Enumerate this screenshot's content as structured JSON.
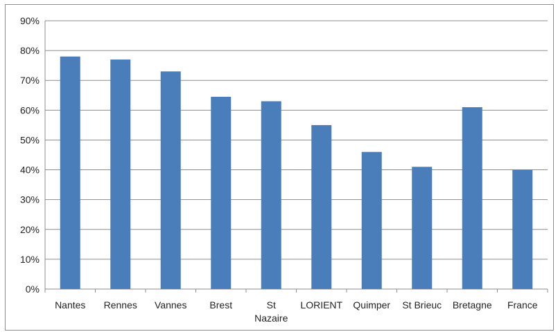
{
  "chart_data": {
    "type": "bar",
    "categories": [
      "Nantes",
      "Rennes",
      "Vannes",
      "Brest",
      "St Nazaire",
      "LORIENT",
      "Quimper",
      "St Brieuc",
      "Bretagne",
      "France"
    ],
    "values": [
      78,
      77,
      73,
      64.5,
      63,
      55,
      46,
      41,
      61,
      40
    ],
    "title": "",
    "xlabel": "",
    "ylabel": "",
    "ylim": [
      0,
      90
    ],
    "yticks": [
      "0%",
      "10%",
      "20%",
      "30%",
      "40%",
      "50%",
      "60%",
      "70%",
      "80%",
      "90%"
    ],
    "grid": true,
    "legend": "none",
    "bar_color": "#4a7ebb"
  }
}
